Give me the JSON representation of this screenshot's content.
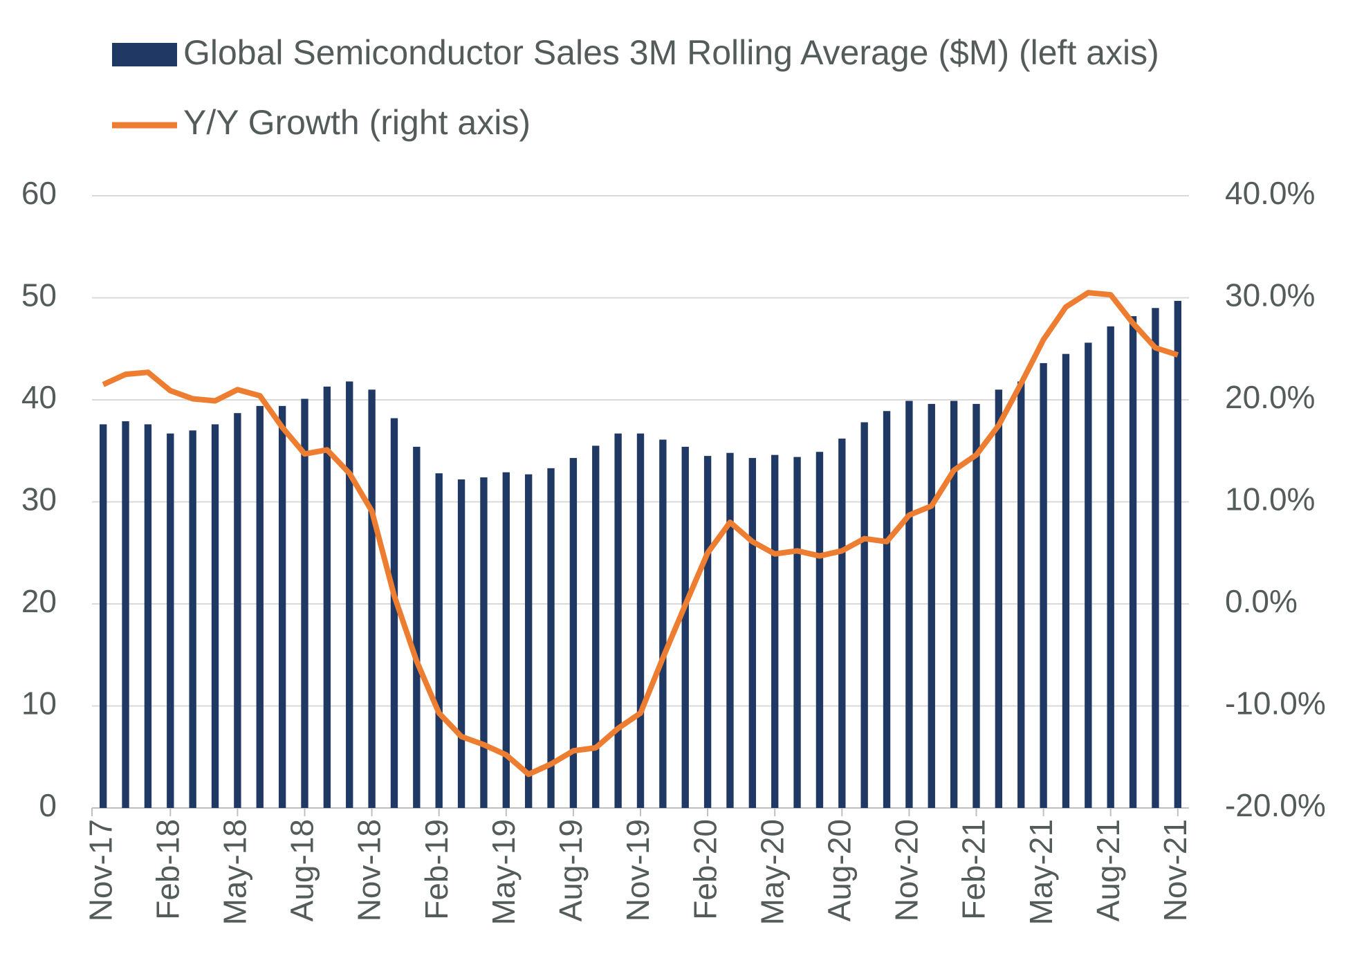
{
  "chart_data": {
    "type": "bar-line",
    "categories": [
      "Nov-17",
      null,
      null,
      "Feb-18",
      null,
      null,
      "May-18",
      null,
      null,
      "Aug-18",
      null,
      null,
      "Nov-18",
      null,
      null,
      "Feb-19",
      null,
      null,
      "May-19",
      null,
      null,
      "Aug-19",
      null,
      null,
      "Nov-19",
      null,
      null,
      "Feb-20",
      null,
      null,
      "May-20",
      null,
      null,
      "Aug-20",
      null,
      null,
      "Nov-20",
      null,
      null,
      "Feb-21",
      null,
      null,
      "May-21",
      null,
      null,
      "Aug-21",
      null,
      null,
      "Nov-21"
    ],
    "series": [
      {
        "name": "Global Semiconductor Sales 3M Rolling Average ($M) (left axis)",
        "type": "bar",
        "color": "#1f3864",
        "values": [
          37.6,
          37.9,
          37.6,
          36.7,
          37.0,
          37.6,
          38.7,
          39.4,
          39.4,
          40.1,
          41.3,
          41.8,
          41.0,
          38.2,
          35.4,
          32.8,
          32.2,
          32.4,
          32.9,
          32.7,
          33.3,
          34.3,
          35.5,
          36.7,
          36.7,
          36.1,
          35.4,
          34.5,
          34.8,
          34.3,
          34.6,
          34.4,
          34.9,
          36.2,
          37.8,
          38.9,
          39.9,
          39.6,
          39.9,
          39.6,
          41.0,
          41.8,
          43.6,
          44.5,
          45.6,
          47.2,
          48.2,
          49.0,
          49.7
        ]
      },
      {
        "name": "Y/Y Growth (right axis)",
        "type": "line",
        "axis": "y2",
        "color": "#ed7d31",
        "values": [
          21.5,
          22.5,
          22.7,
          20.9,
          20.1,
          19.9,
          21.0,
          20.4,
          17.3,
          14.7,
          15.1,
          12.8,
          9.1,
          0.8,
          -5.6,
          -10.7,
          -13.0,
          -13.8,
          -14.8,
          -16.7,
          -15.7,
          -14.4,
          -14.1,
          -12.2,
          -10.7,
          -5.3,
          -0.1,
          5.0,
          8.0,
          6.1,
          4.9,
          5.2,
          4.7,
          5.2,
          6.4,
          6.1,
          8.7,
          9.6,
          13.1,
          14.6,
          17.5,
          21.6,
          25.9,
          29.1,
          30.5,
          30.3,
          27.5,
          25.1,
          24.4
        ]
      }
    ],
    "ylim": [
      0,
      60
    ],
    "yticks": [
      0,
      10,
      20,
      30,
      40,
      50,
      60
    ],
    "y2lim": [
      -20,
      40
    ],
    "y2ticks": [
      {
        "value": -20,
        "label": "-20.0%"
      },
      {
        "value": -10,
        "label": "-10.0%"
      },
      {
        "value": 0,
        "label": "0.0%"
      },
      {
        "value": 10,
        "label": "10.0%"
      },
      {
        "value": 20,
        "label": "20.0%"
      },
      {
        "value": 30,
        "label": "30.0%"
      },
      {
        "value": 40,
        "label": "40.0%"
      }
    ],
    "grid": true,
    "legend": "top"
  }
}
